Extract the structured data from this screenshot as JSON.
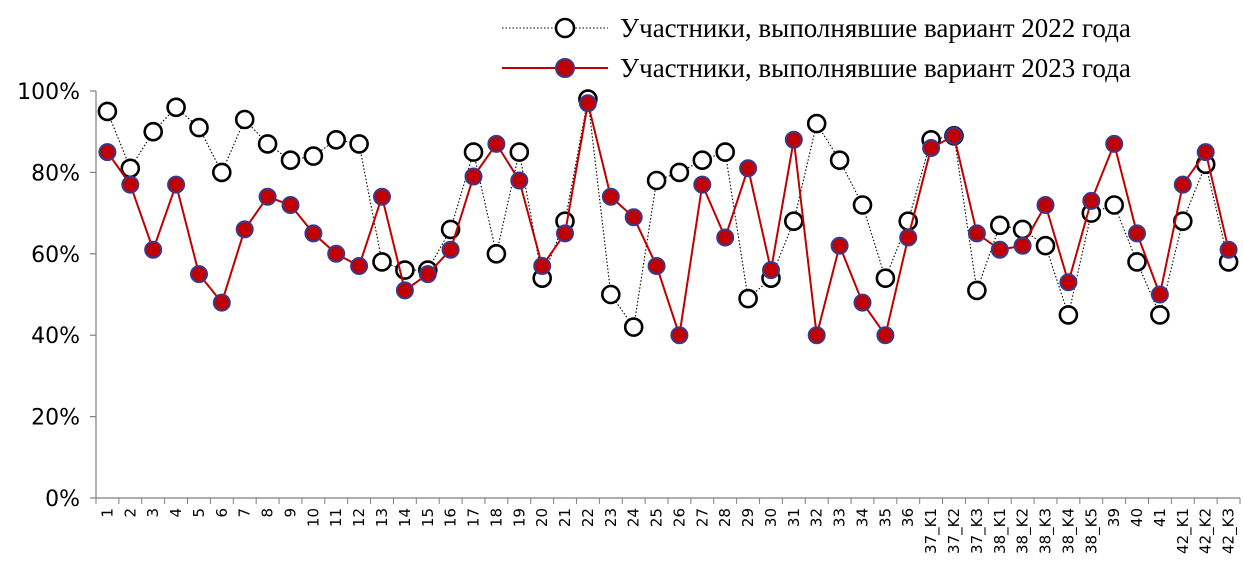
{
  "chart_data": {
    "type": "line",
    "y_unit": "%",
    "ylim": [
      0,
      100
    ],
    "yticks": [
      0,
      20,
      40,
      60,
      80,
      100
    ],
    "ytick_labels": [
      "0%",
      "20%",
      "40%",
      "60%",
      "80%",
      "100%"
    ],
    "grid": false,
    "legend_position": "top-right",
    "categories": [
      "1",
      "2",
      "3",
      "4",
      "5",
      "6",
      "7",
      "8",
      "9",
      "10",
      "11",
      "12",
      "13",
      "14",
      "15",
      "16",
      "17",
      "18",
      "19",
      "20",
      "21",
      "22",
      "23",
      "24",
      "25",
      "26",
      "27",
      "28",
      "29",
      "30",
      "31",
      "32",
      "33",
      "34",
      "35",
      "36",
      "37_K1",
      "37_K2",
      "37_K3",
      "38_K1",
      "38_K2",
      "38_K3",
      "38_K4",
      "38_K5",
      "39",
      "40",
      "41",
      "42_K1",
      "42_K2",
      "42_K3"
    ],
    "series": [
      {
        "name": "Участники, выполнявшие вариант 2022 года",
        "line_color": "#000000",
        "line_style": "dotted",
        "marker_fill": "#ffffff",
        "marker_stroke": "#000000",
        "values": [
          95,
          81,
          90,
          96,
          91,
          80,
          93,
          87,
          83,
          84,
          88,
          87,
          58,
          56,
          56,
          66,
          85,
          60,
          85,
          54,
          68,
          98,
          50,
          42,
          78,
          80,
          83,
          85,
          49,
          54,
          68,
          92,
          83,
          72,
          54,
          68,
          88,
          89,
          51,
          67,
          66,
          62,
          45,
          70,
          72,
          58,
          45,
          68,
          82,
          58
        ]
      },
      {
        "name": "Участники, выполнявшие вариант 2023 года",
        "line_color": "#c00000",
        "line_style": "solid",
        "marker_fill": "#c00000",
        "marker_stroke": "#3a3a8c",
        "values": [
          85,
          77,
          61,
          77,
          55,
          48,
          66,
          74,
          72,
          65,
          60,
          57,
          74,
          51,
          55,
          61,
          79,
          87,
          78,
          57,
          65,
          97,
          74,
          69,
          57,
          40,
          77,
          64,
          81,
          56,
          88,
          40,
          62,
          48,
          40,
          64,
          86,
          89,
          65,
          61,
          62,
          72,
          53,
          73,
          87,
          65,
          50,
          77,
          85,
          61
        ]
      }
    ]
  }
}
